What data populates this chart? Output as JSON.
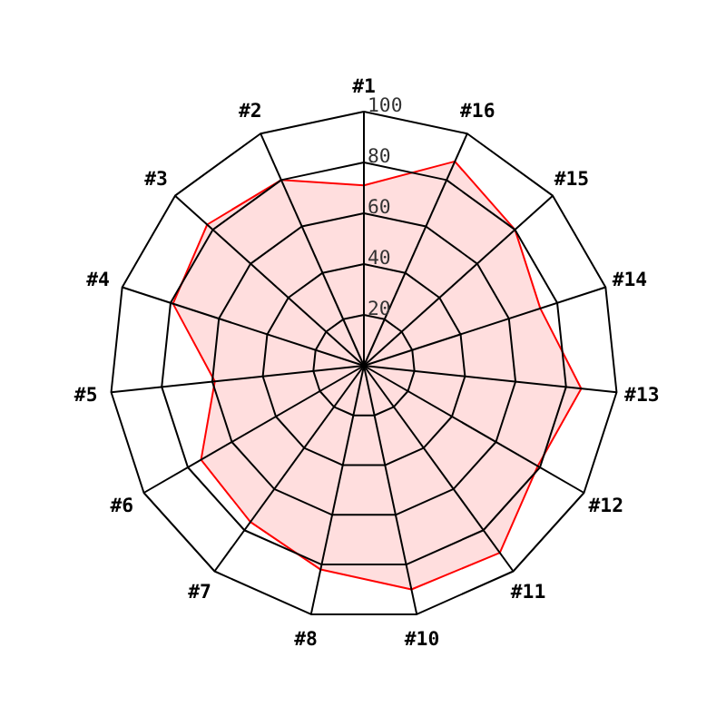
{
  "chart_data": {
    "type": "radar",
    "categories": [
      "#1",
      "#16",
      "#15",
      "#14",
      "#13",
      "#12",
      "#11",
      "#10",
      "#8",
      "#7",
      "#6",
      "#5",
      "#4",
      "#3",
      "#2"
    ],
    "series": [
      {
        "color": "#ff0000",
        "values": [
          71,
          88,
          80,
          73,
          86,
          79,
          91,
          90,
          82,
          76,
          74,
          59,
          79,
          83,
          80
        ]
      }
    ],
    "ylim": [
      0,
      100
    ],
    "yticks": [
      20,
      40,
      60,
      80,
      100
    ],
    "grid": true,
    "marker": "none",
    "line_style": "solid"
  }
}
